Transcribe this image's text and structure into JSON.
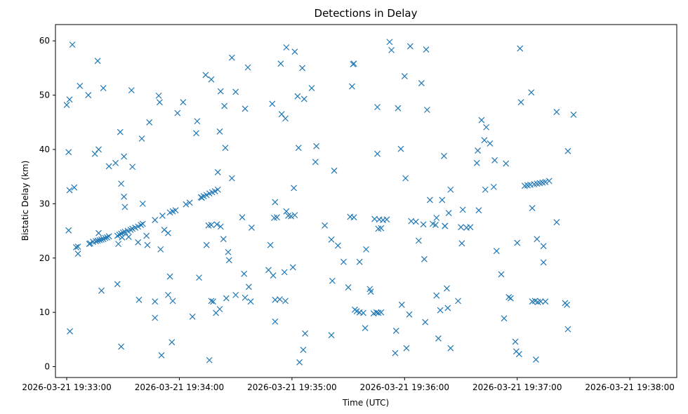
{
  "chart_data": {
    "type": "scatter",
    "title": "Detections in Delay",
    "xlabel": "Time (UTC)",
    "ylabel": "Bistatic Delay (km)",
    "marker": "x",
    "color": "#1f77b4",
    "grid": false,
    "x_axis": "time",
    "xlim": [
      "2026-03-21 19:32:54",
      "2026-03-21 19:38:25"
    ],
    "ylim": [
      -2,
      63
    ],
    "x_ticks": [
      "2026-03-21 19:33:00",
      "2026-03-21 19:34:00",
      "2026-03-21 19:35:00",
      "2026-03-21 19:36:00",
      "2026-03-21 19:37:00",
      "2026-03-21 19:38:00"
    ],
    "y_ticks": [
      0,
      10,
      20,
      30,
      40,
      50,
      60
    ],
    "points": [
      [
        "2026-03-21 19:33:00.0",
        48.2
      ],
      [
        "2026-03-21 19:33:01.0",
        25.1
      ],
      [
        "2026-03-21 19:33:01.0",
        39.5
      ],
      [
        "2026-03-21 19:33:01.5",
        32.5
      ],
      [
        "2026-03-21 19:33:01.5",
        49.2
      ],
      [
        "2026-03-21 19:33:01.7",
        6.5
      ],
      [
        "2026-03-21 19:33:03.0",
        59.3
      ],
      [
        "2026-03-21 19:33:04.0",
        33.0
      ],
      [
        "2026-03-21 19:33:05.0",
        22.0
      ],
      [
        "2026-03-21 19:33:06.0",
        22.1
      ],
      [
        "2026-03-21 19:33:06.0",
        20.8
      ],
      [
        "2026-03-21 19:33:07.0",
        51.7
      ],
      [
        "2026-03-21 19:33:11.5",
        50.0
      ],
      [
        "2026-03-21 19:33:12.0",
        22.6
      ],
      [
        "2026-03-21 19:33:15.0",
        39.2
      ],
      [
        "2026-03-21 19:33:16.5",
        56.3
      ],
      [
        "2026-03-21 19:33:17.0",
        40.0
      ],
      [
        "2026-03-21 19:33:17.0",
        24.6
      ],
      [
        "2026-03-21 19:33:18.5",
        14.0
      ],
      [
        "2026-03-21 19:33:19.5",
        51.3
      ],
      [
        "2026-03-21 19:33:22.5",
        36.9
      ],
      [
        "2026-03-21 19:33:26.0",
        37.5
      ],
      [
        "2026-03-21 19:33:27.0",
        15.2
      ],
      [
        "2026-03-21 19:33:28.5",
        43.2
      ],
      [
        "2026-03-21 19:33:29.0",
        3.7
      ],
      [
        "2026-03-21 19:33:29.0",
        33.7
      ],
      [
        "2026-03-21 19:33:30.5",
        38.7
      ],
      [
        "2026-03-21 19:33:30.5",
        31.3
      ],
      [
        "2026-03-21 19:33:31.0",
        29.4
      ],
      [
        "2026-03-21 19:33:34.5",
        50.9
      ],
      [
        "2026-03-21 19:33:35.0",
        36.8
      ],
      [
        "2026-03-21 19:33:38.5",
        12.3
      ],
      [
        "2026-03-21 19:33:40.0",
        42.0
      ],
      [
        "2026-03-21 19:33:40.5",
        30.0
      ],
      [
        "2026-03-21 19:33:42.5",
        24.1
      ],
      [
        "2026-03-21 19:33:43.0",
        22.4
      ],
      [
        "2026-03-21 19:33:44.0",
        45.0
      ],
      [
        "2026-03-21 19:33:47.0",
        12.0
      ],
      [
        "2026-03-21 19:33:47.0",
        9.0
      ],
      [
        "2026-03-21 19:33:49.0",
        49.9
      ],
      [
        "2026-03-21 19:33:49.5",
        48.7
      ],
      [
        "2026-03-21 19:33:50.0",
        21.6
      ],
      [
        "2026-03-21 19:33:50.5",
        2.1
      ],
      [
        "2026-03-21 19:33:51.0",
        27.8
      ],
      [
        "2026-03-21 19:33:52.0",
        25.2
      ],
      [
        "2026-03-21 19:33:54.0",
        24.6
      ],
      [
        "2026-03-21 19:33:54.0",
        13.2
      ],
      [
        "2026-03-21 19:33:55.0",
        16.6
      ],
      [
        "2026-03-21 19:33:56.0",
        4.5
      ],
      [
        "2026-03-21 19:33:56.5",
        12.1
      ],
      [
        "2026-03-21 19:33:59.0",
        46.7
      ],
      [
        "2026-03-21 19:34:02.0",
        48.7
      ],
      [
        "2026-03-21 19:34:07.0",
        9.2
      ],
      [
        "2026-03-21 19:34:09.0",
        43.0
      ],
      [
        "2026-03-21 19:34:09.5",
        45.2
      ],
      [
        "2026-03-21 19:34:10.5",
        16.4
      ],
      [
        "2026-03-21 19:34:12.0",
        31.1
      ],
      [
        "2026-03-21 19:34:14.0",
        53.7
      ],
      [
        "2026-03-21 19:34:14.5",
        22.4
      ],
      [
        "2026-03-21 19:34:16.0",
        1.2
      ],
      [
        "2026-03-21 19:34:17.0",
        52.9
      ],
      [
        "2026-03-21 19:34:20.5",
        35.8
      ],
      [
        "2026-03-21 19:34:21.5",
        43.3
      ],
      [
        "2026-03-21 19:34:22.0",
        50.7
      ],
      [
        "2026-03-21 19:34:23.5",
        23.5
      ],
      [
        "2026-03-21 19:34:24.0",
        48.0
      ],
      [
        "2026-03-21 19:34:24.5",
        40.3
      ],
      [
        "2026-03-21 19:34:25.0",
        12.6
      ],
      [
        "2026-03-21 19:34:26.0",
        21.1
      ],
      [
        "2026-03-21 19:34:26.5",
        19.6
      ],
      [
        "2026-03-21 19:34:28.0",
        56.9
      ],
      [
        "2026-03-21 19:34:28.0",
        34.7
      ],
      [
        "2026-03-21 19:34:30.0",
        50.6
      ],
      [
        "2026-03-21 19:34:30.0",
        13.2
      ],
      [
        "2026-03-21 19:34:33.5",
        27.5
      ],
      [
        "2026-03-21 19:34:34.5",
        17.1
      ],
      [
        "2026-03-21 19:34:35.0",
        12.7
      ],
      [
        "2026-03-21 19:34:35.0",
        47.5
      ],
      [
        "2026-03-21 19:34:36.5",
        55.1
      ],
      [
        "2026-03-21 19:34:37.0",
        14.7
      ],
      [
        "2026-03-21 19:34:38.0",
        12.0
      ],
      [
        "2026-03-21 19:34:38.5",
        25.6
      ],
      [
        "2026-03-21 19:34:47.5",
        17.8
      ],
      [
        "2026-03-21 19:34:48.5",
        22.4
      ],
      [
        "2026-03-21 19:34:49.5",
        48.4
      ],
      [
        "2026-03-21 19:34:50.0",
        16.8
      ],
      [
        "2026-03-21 19:34:51.0",
        8.3
      ],
      [
        "2026-03-21 19:34:51.0",
        30.3
      ],
      [
        "2026-03-21 19:34:54.0",
        55.8
      ],
      [
        "2026-03-21 19:34:54.5",
        46.5
      ],
      [
        "2026-03-21 19:34:56.0",
        17.4
      ],
      [
        "2026-03-21 19:34:56.5",
        45.7
      ],
      [
        "2026-03-21 19:34:57.0",
        58.8
      ],
      [
        "2026-03-21 19:35:00.5",
        18.3
      ],
      [
        "2026-03-21 19:35:01.0",
        32.9
      ],
      [
        "2026-03-21 19:35:01.5",
        58.0
      ],
      [
        "2026-03-21 19:35:03.0",
        49.8
      ],
      [
        "2026-03-21 19:35:03.5",
        40.3
      ],
      [
        "2026-03-21 19:35:04.0",
        0.8
      ],
      [
        "2026-03-21 19:35:05.5",
        55.0
      ],
      [
        "2026-03-21 19:35:06.0",
        3.1
      ],
      [
        "2026-03-21 19:35:06.5",
        49.3
      ],
      [
        "2026-03-21 19:35:07.0",
        6.1
      ],
      [
        "2026-03-21 19:35:10.5",
        51.3
      ],
      [
        "2026-03-21 19:35:12.5",
        37.7
      ],
      [
        "2026-03-21 19:35:13.0",
        40.6
      ],
      [
        "2026-03-21 19:35:17.5",
        26.0
      ],
      [
        "2026-03-21 19:35:21.0",
        23.4
      ],
      [
        "2026-03-21 19:35:21.0",
        5.8
      ],
      [
        "2026-03-21 19:35:21.5",
        15.8
      ],
      [
        "2026-03-21 19:35:22.5",
        36.1
      ],
      [
        "2026-03-21 19:35:24.5",
        22.3
      ],
      [
        "2026-03-21 19:35:27.5",
        19.3
      ],
      [
        "2026-03-21 19:35:30.0",
        14.6
      ],
      [
        "2026-03-21 19:35:32.0",
        51.6
      ],
      [
        "2026-03-21 19:35:32.5",
        55.7
      ],
      [
        "2026-03-21 19:35:33.0",
        55.8
      ],
      [
        "2026-03-21 19:35:36.0",
        19.3
      ],
      [
        "2026-03-21 19:35:39.0",
        7.1
      ],
      [
        "2026-03-21 19:35:39.5",
        21.6
      ],
      [
        "2026-03-21 19:35:41.5",
        14.3
      ],
      [
        "2026-03-21 19:35:42.0",
        13.8
      ],
      [
        "2026-03-21 19:35:45.5",
        39.2
      ],
      [
        "2026-03-21 19:35:45.5",
        47.8
      ],
      [
        "2026-03-21 19:35:52.0",
        59.8
      ],
      [
        "2026-03-21 19:35:53.0",
        58.3
      ],
      [
        "2026-03-21 19:35:55.0",
        2.5
      ],
      [
        "2026-03-21 19:35:55.5",
        6.6
      ],
      [
        "2026-03-21 19:35:56.5",
        47.6
      ],
      [
        "2026-03-21 19:35:58.0",
        40.1
      ],
      [
        "2026-03-21 19:35:58.5",
        11.4
      ],
      [
        "2026-03-21 19:36:00.0",
        53.5
      ],
      [
        "2026-03-21 19:36:00.5",
        34.7
      ],
      [
        "2026-03-21 19:36:01.0",
        3.4
      ],
      [
        "2026-03-21 19:36:02.5",
        9.6
      ],
      [
        "2026-03-21 19:36:03.0",
        59.0
      ],
      [
        "2026-03-21 19:36:03.5",
        26.8
      ],
      [
        "2026-03-21 19:36:06.0",
        26.7
      ],
      [
        "2026-03-21 19:36:07.5",
        23.2
      ],
      [
        "2026-03-21 19:36:09.0",
        52.2
      ],
      [
        "2026-03-21 19:36:10.0",
        26.2
      ],
      [
        "2026-03-21 19:36:10.5",
        19.8
      ],
      [
        "2026-03-21 19:36:11.0",
        8.2
      ],
      [
        "2026-03-21 19:36:11.5",
        58.4
      ],
      [
        "2026-03-21 19:36:12.0",
        47.3
      ],
      [
        "2026-03-21 19:36:13.5",
        30.7
      ],
      [
        "2026-03-21 19:36:15.0",
        26.3
      ],
      [
        "2026-03-21 19:36:17.0",
        27.4
      ],
      [
        "2026-03-21 19:36:17.0",
        13.1
      ],
      [
        "2026-03-21 19:36:18.0",
        5.2
      ],
      [
        "2026-03-21 19:36:19.0",
        10.4
      ],
      [
        "2026-03-21 19:36:20.0",
        30.7
      ],
      [
        "2026-03-21 19:36:21.0",
        38.8
      ],
      [
        "2026-03-21 19:36:21.5",
        25.9
      ],
      [
        "2026-03-21 19:36:22.5",
        14.4
      ],
      [
        "2026-03-21 19:36:23.0",
        10.8
      ],
      [
        "2026-03-21 19:36:23.5",
        28.3
      ],
      [
        "2026-03-21 19:36:24.5",
        32.6
      ],
      [
        "2026-03-21 19:36:24.5",
        3.4
      ],
      [
        "2026-03-21 19:36:28.5",
        12.1
      ],
      [
        "2026-03-21 19:36:30.0",
        25.7
      ],
      [
        "2026-03-21 19:36:30.5",
        22.7
      ],
      [
        "2026-03-21 19:36:31.0",
        28.9
      ],
      [
        "2026-03-21 19:36:38.5",
        37.5
      ],
      [
        "2026-03-21 19:36:39.0",
        39.8
      ],
      [
        "2026-03-21 19:36:39.5",
        28.8
      ],
      [
        "2026-03-21 19:36:41.0",
        45.4
      ],
      [
        "2026-03-21 19:36:42.5",
        41.7
      ],
      [
        "2026-03-21 19:36:43.0",
        32.6
      ],
      [
        "2026-03-21 19:36:43.5",
        44.1
      ],
      [
        "2026-03-21 19:36:45.5",
        41.1
      ],
      [
        "2026-03-21 19:36:47.5",
        33.1
      ],
      [
        "2026-03-21 19:36:48.0",
        38.0
      ],
      [
        "2026-03-21 19:36:49.0",
        21.3
      ],
      [
        "2026-03-21 19:36:51.5",
        17.0
      ],
      [
        "2026-03-21 19:36:53.0",
        8.9
      ],
      [
        "2026-03-21 19:36:54.0",
        37.4
      ],
      [
        "2026-03-21 19:36:55.5",
        12.8
      ],
      [
        "2026-03-21 19:36:56.5",
        12.6
      ],
      [
        "2026-03-21 19:36:59.0",
        4.6
      ],
      [
        "2026-03-21 19:36:59.5",
        2.8
      ],
      [
        "2026-03-21 19:37:00.0",
        22.8
      ],
      [
        "2026-03-21 19:37:01.0",
        2.3
      ],
      [
        "2026-03-21 19:37:01.5",
        58.6
      ],
      [
        "2026-03-21 19:37:02.0",
        48.7
      ],
      [
        "2026-03-21 19:37:07.5",
        50.5
      ],
      [
        "2026-03-21 19:37:08.0",
        29.2
      ],
      [
        "2026-03-21 19:37:10.0",
        1.3
      ],
      [
        "2026-03-21 19:37:10.5",
        23.5
      ],
      [
        "2026-03-21 19:37:14.0",
        19.2
      ],
      [
        "2026-03-21 19:37:14.0",
        22.2
      ],
      [
        "2026-03-21 19:37:15.0",
        12.0
      ],
      [
        "2026-03-21 19:37:21.0",
        46.9
      ],
      [
        "2026-03-21 19:37:21.0",
        26.6
      ],
      [
        "2026-03-21 19:37:25.5",
        11.7
      ],
      [
        "2026-03-21 19:37:26.5",
        11.4
      ],
      [
        "2026-03-21 19:37:27.0",
        39.7
      ],
      [
        "2026-03-21 19:37:27.0",
        6.9
      ],
      [
        "2026-03-21 19:37:30.0",
        46.4
      ],
      [
        "2026-03-21 19:33:12.5",
        22.7
      ],
      [
        "2026-03-21 19:33:14.0",
        23.0
      ],
      [
        "2026-03-21 19:33:15.5",
        23.1
      ],
      [
        "2026-03-21 19:33:16.5",
        23.2
      ],
      [
        "2026-03-21 19:33:17.5",
        23.3
      ],
      [
        "2026-03-21 19:33:18.5",
        23.4
      ],
      [
        "2026-03-21 19:33:19.5",
        23.5
      ],
      [
        "2026-03-21 19:33:20.5",
        23.7
      ],
      [
        "2026-03-21 19:33:21.5",
        23.8
      ],
      [
        "2026-03-21 19:33:22.5",
        24.0
      ],
      [
        "2026-03-21 19:33:27.0",
        24.1
      ],
      [
        "2026-03-21 19:33:28.0",
        24.3
      ],
      [
        "2026-03-21 19:33:29.0",
        24.5
      ],
      [
        "2026-03-21 19:33:30.0",
        24.7
      ],
      [
        "2026-03-21 19:33:31.0",
        24.8
      ],
      [
        "2026-03-21 19:33:32.5",
        25.0
      ],
      [
        "2026-03-21 19:33:34.0",
        25.2
      ],
      [
        "2026-03-21 19:33:35.0",
        25.4
      ],
      [
        "2026-03-21 19:33:36.5",
        25.6
      ],
      [
        "2026-03-21 19:33:38.0",
        25.8
      ],
      [
        "2026-03-21 19:33:39.5",
        26.1
      ],
      [
        "2026-03-21 19:33:40.5",
        26.3
      ],
      [
        "2026-03-21 19:33:27.5",
        22.6
      ],
      [
        "2026-03-21 19:33:29.5",
        23.8
      ],
      [
        "2026-03-21 19:33:33.0",
        23.9
      ],
      [
        "2026-03-21 19:33:38.0",
        22.9
      ],
      [
        "2026-03-21 19:33:47.0",
        27.0
      ],
      [
        "2026-03-21 19:33:55.0",
        28.4
      ],
      [
        "2026-03-21 19:33:56.5",
        28.6
      ],
      [
        "2026-03-21 19:33:58.0",
        28.8
      ],
      [
        "2026-03-21 19:34:03.5",
        29.9
      ],
      [
        "2026-03-21 19:34:05.5",
        30.2
      ],
      [
        "2026-03-21 19:34:11.5",
        31.2
      ],
      [
        "2026-03-21 19:34:13.0",
        31.4
      ],
      [
        "2026-03-21 19:34:14.5",
        31.6
      ],
      [
        "2026-03-21 19:34:16.0",
        31.9
      ],
      [
        "2026-03-21 19:34:17.5",
        32.1
      ],
      [
        "2026-03-21 19:34:19.0",
        32.3
      ],
      [
        "2026-03-21 19:34:20.5",
        32.6
      ],
      [
        "2026-03-21 19:34:15.5",
        26.0
      ],
      [
        "2026-03-21 19:34:17.0",
        26.1
      ],
      [
        "2026-03-21 19:34:20.0",
        26.2
      ],
      [
        "2026-03-21 19:34:22.0",
        25.8
      ],
      [
        "2026-03-21 19:34:17.0",
        12.1
      ],
      [
        "2026-03-21 19:34:18.0",
        12.0
      ],
      [
        "2026-03-21 19:34:19.5",
        9.9
      ],
      [
        "2026-03-21 19:34:21.5",
        10.6
      ],
      [
        "2026-03-21 19:34:50.5",
        27.4
      ],
      [
        "2026-03-21 19:34:52.0",
        27.5
      ],
      [
        "2026-03-21 19:34:51.0",
        12.3
      ],
      [
        "2026-03-21 19:34:53.5",
        12.4
      ],
      [
        "2026-03-21 19:34:56.5",
        12.1
      ],
      [
        "2026-03-21 19:34:57.0",
        28.6
      ],
      [
        "2026-03-21 19:34:58.0",
        27.8
      ],
      [
        "2026-03-21 19:34:59.5",
        27.7
      ],
      [
        "2026-03-21 19:35:01.5",
        27.9
      ],
      [
        "2026-03-21 19:35:31.0",
        27.6
      ],
      [
        "2026-03-21 19:35:33.0",
        27.5
      ],
      [
        "2026-03-21 19:35:33.5",
        10.5
      ],
      [
        "2026-03-21 19:35:34.5",
        10.2
      ],
      [
        "2026-03-21 19:35:36.0",
        10.0
      ],
      [
        "2026-03-21 19:35:38.0",
        9.9
      ],
      [
        "2026-03-21 19:35:43.5",
        9.8
      ],
      [
        "2026-03-21 19:35:45.0",
        10.0
      ],
      [
        "2026-03-21 19:35:46.0",
        9.9
      ],
      [
        "2026-03-21 19:35:47.5",
        10.0
      ],
      [
        "2026-03-21 19:35:44.0",
        27.2
      ],
      [
        "2026-03-21 19:35:46.5",
        27.1
      ],
      [
        "2026-03-21 19:35:48.5",
        27.0
      ],
      [
        "2026-03-21 19:35:50.5",
        27.1
      ],
      [
        "2026-03-21 19:35:46.0",
        25.4
      ],
      [
        "2026-03-21 19:35:47.5",
        25.5
      ],
      [
        "2026-03-21 19:36:16.5",
        26.1
      ],
      [
        "2026-03-21 19:36:21.5",
        25.9
      ],
      [
        "2026-03-21 19:36:33.0",
        25.6
      ],
      [
        "2026-03-21 19:36:35.0",
        25.7
      ],
      [
        "2026-03-21 19:37:04.0",
        33.3
      ],
      [
        "2026-03-21 19:37:05.5",
        33.4
      ],
      [
        "2026-03-21 19:37:07.0",
        33.5
      ],
      [
        "2026-03-21 19:37:09.0",
        33.6
      ],
      [
        "2026-03-21 19:37:10.5",
        33.7
      ],
      [
        "2026-03-21 19:37:12.0",
        33.8
      ],
      [
        "2026-03-21 19:37:13.5",
        33.9
      ],
      [
        "2026-03-21 19:37:15.0",
        34.0
      ],
      [
        "2026-03-21 19:37:17.0",
        34.2
      ],
      [
        "2026-03-21 19:37:08.0",
        12.0
      ],
      [
        "2026-03-21 19:37:09.5",
        12.1
      ],
      [
        "2026-03-21 19:37:11.0",
        11.9
      ],
      [
        "2026-03-21 19:37:12.5",
        12.0
      ]
    ]
  }
}
